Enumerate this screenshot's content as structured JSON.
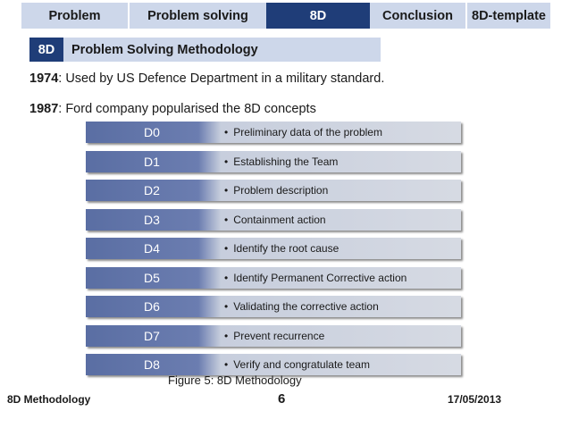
{
  "nav": {
    "tabs": [
      {
        "label": "Problem"
      },
      {
        "label": "Problem solving"
      },
      {
        "label": "8D",
        "active": true
      },
      {
        "label": "Conclusion"
      },
      {
        "label": "8D-template"
      }
    ]
  },
  "colors": {
    "nav_bg": "#cdd7ea",
    "accent": "#1f3d78",
    "step_dark": "#5a6ea3",
    "step_light": "#d6dae3"
  },
  "section": {
    "badge": "8D",
    "title": "Problem Solving Methodology"
  },
  "history": [
    {
      "year": "1974",
      "text": ": Used by US Defence Department in a military standard."
    },
    {
      "year": "1987",
      "text": ": Ford company popularised the 8D concepts"
    }
  ],
  "steps": [
    {
      "code": "D0",
      "desc": "Preliminary data of the problem"
    },
    {
      "code": "D1",
      "desc": "Establishing the Team"
    },
    {
      "code": "D2",
      "desc": "Problem description"
    },
    {
      "code": "D3",
      "desc": "Containment action"
    },
    {
      "code": "D4",
      "desc": "Identify the root cause"
    },
    {
      "code": "D5",
      "desc": "Identify Permanent Corrective action"
    },
    {
      "code": "D6",
      "desc": "Validating the corrective action"
    },
    {
      "code": "D7",
      "desc": "Prevent recurrence"
    },
    {
      "code": "D8",
      "desc": "Verify and congratulate team"
    }
  ],
  "bullet_char": "•",
  "caption": "Figure 5: 8D Methodology",
  "footer": {
    "left": "8D Methodology",
    "page": "6",
    "date": "17/05/2013"
  }
}
